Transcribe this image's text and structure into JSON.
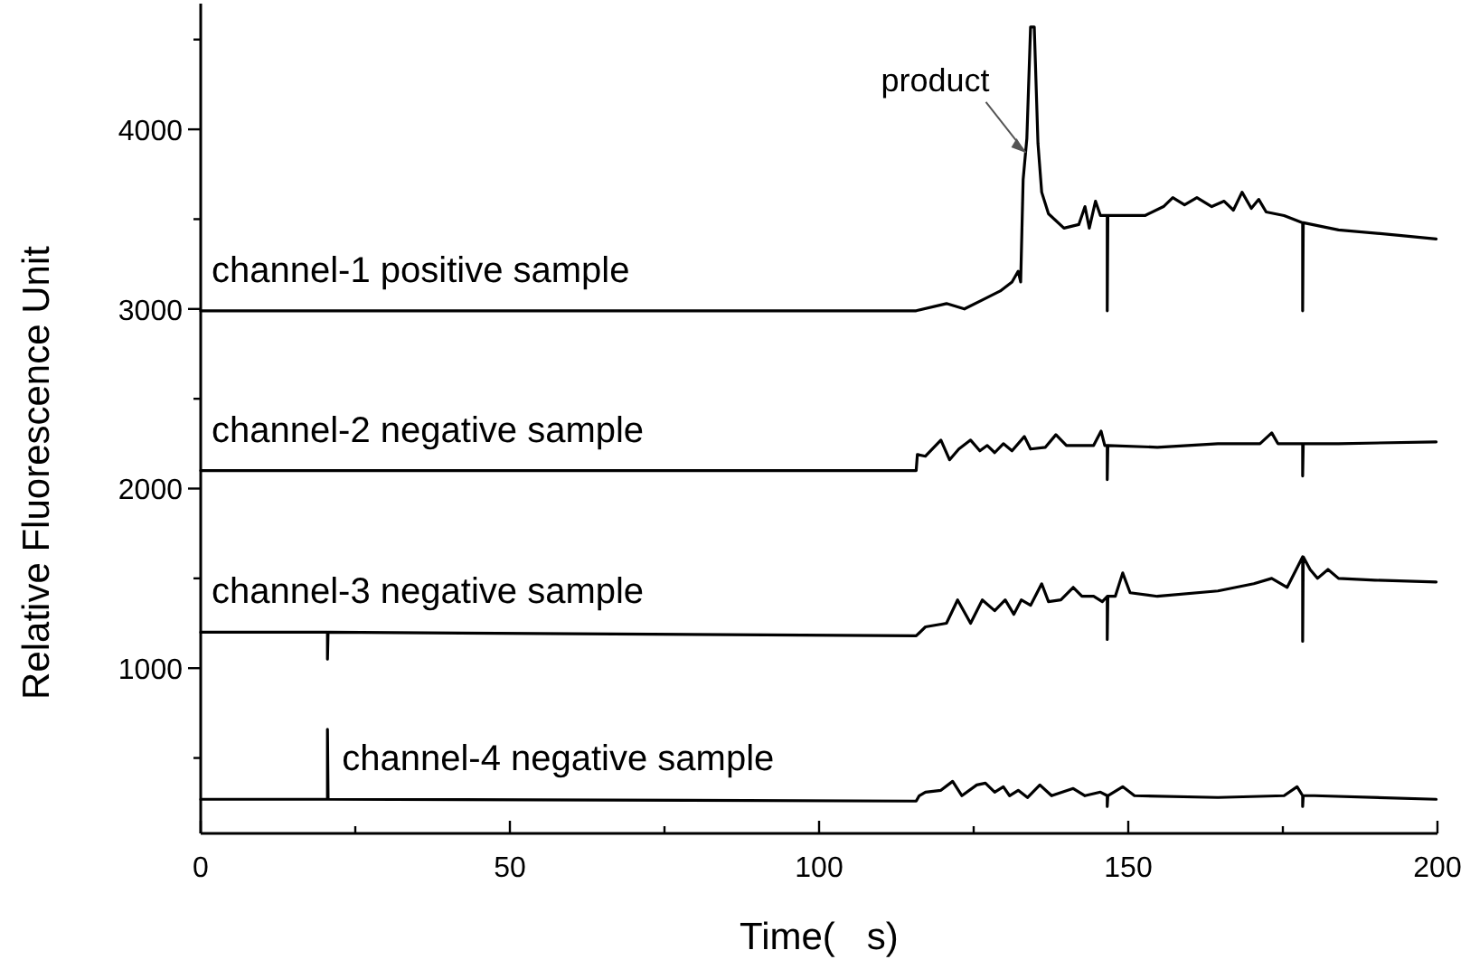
{
  "chart_data": {
    "type": "line",
    "xlabel": "Time(   s)",
    "ylabel": "Relative Fluorescence Unit",
    "xlim": [
      0,
      200
    ],
    "ylim": [
      80,
      4700
    ],
    "xticks": [
      0,
      {
        "value": 25,
        "label": null
      },
      50,
      {
        "value": 75,
        "label": null
      },
      100,
      {
        "value": 125,
        "label": null
      },
      150,
      {
        "value": 175,
        "label": null
      },
      200
    ],
    "yticks": [
      {
        "value": 500,
        "label": null
      },
      1000,
      {
        "value": 1500,
        "label": null
      },
      2000,
      {
        "value": 2500,
        "label": null
      },
      3000,
      {
        "value": 3500,
        "label": null
      },
      4000,
      {
        "value": 4500,
        "label": null
      }
    ],
    "grid": false,
    "marker": "none",
    "line_style": "solid",
    "annotations": [
      {
        "text": "product",
        "x": 134,
        "y": 3850
      }
    ],
    "series": [
      {
        "name": "channel-1 positive sample",
        "color": "#000000",
        "x": [
          0,
          100,
          115.7,
          120.6,
          123.5,
          126.4,
          129.3,
          131.2,
          132.2,
          132.6,
          133,
          133.6,
          134.2,
          134.8,
          135.4,
          136,
          137.1,
          139.6,
          142,
          143,
          143.7,
          144.7,
          145.5,
          146.6,
          146.6,
          146.7,
          152.7,
          155.7,
          157.2,
          159.1,
          161.1,
          163.5,
          165.5,
          167,
          168.4,
          169.9,
          171.1,
          172.3,
          175.2,
          178.2,
          178.2,
          178.3,
          184,
          193.8,
          199.8
        ],
        "values": [
          2990,
          2990,
          2990,
          3030,
          3000,
          3050,
          3100,
          3150,
          3210,
          3150,
          3720,
          3950,
          4570,
          4570,
          3920,
          3650,
          3530,
          3450,
          3470,
          3570,
          3450,
          3600,
          3520,
          3520,
          2990,
          3520,
          3520,
          3570,
          3620,
          3580,
          3620,
          3570,
          3600,
          3550,
          3650,
          3560,
          3610,
          3540,
          3520,
          3480,
          2990,
          3480,
          3440,
          3410,
          3390
        ]
      },
      {
        "name": "channel-2 negative sample",
        "color": "#000000",
        "x": [
          0,
          115.7,
          115.9,
          117.2,
          119.7,
          121.1,
          122.6,
          124.5,
          126,
          127.2,
          128.4,
          129.8,
          131.2,
          133.2,
          134.2,
          136.6,
          138.3,
          140,
          144.4,
          145.6,
          146.2,
          146.6,
          146.6,
          146.7,
          154.7,
          164.5,
          171.3,
          173.2,
          174.2,
          178.2,
          178.2,
          178.3,
          184,
          199.8
        ],
        "values": [
          2100,
          2100,
          2190,
          2180,
          2270,
          2160,
          2220,
          2270,
          2210,
          2240,
          2200,
          2250,
          2210,
          2290,
          2220,
          2230,
          2300,
          2240,
          2240,
          2320,
          2240,
          2240,
          2050,
          2240,
          2230,
          2250,
          2250,
          2310,
          2250,
          2250,
          2070,
          2250,
          2250,
          2260
        ]
      },
      {
        "name": "channel-3 negative sample",
        "color": "#000000",
        "x": [
          0,
          20.5,
          20.5,
          20.6,
          115.7,
          117.2,
          120.6,
          122.4,
          124.5,
          126.4,
          128.4,
          130.1,
          131.5,
          132.7,
          134.2,
          136,
          137.1,
          139.1,
          141.1,
          142.5,
          144.4,
          145.8,
          146.6,
          146.6,
          146.7,
          147.9,
          149.1,
          150.3,
          154.7,
          164.5,
          170.3,
          173.2,
          175.7,
          178.2,
          178.2,
          178.3,
          179.4,
          180.6,
          182.3,
          184,
          189.9,
          199.8
        ],
        "values": [
          1200,
          1200,
          1050,
          1200,
          1180,
          1230,
          1250,
          1380,
          1250,
          1380,
          1320,
          1380,
          1300,
          1380,
          1350,
          1470,
          1370,
          1380,
          1450,
          1400,
          1400,
          1370,
          1400,
          1160,
          1400,
          1400,
          1530,
          1420,
          1400,
          1430,
          1470,
          1500,
          1450,
          1620,
          1150,
          1620,
          1550,
          1500,
          1550,
          1500,
          1490,
          1480
        ]
      },
      {
        "name": "channel-4 negative sample",
        "color": "#000000",
        "x": [
          0,
          20.5,
          20.5,
          20.6,
          115.7,
          116.2,
          117.2,
          119.7,
          121.6,
          123.1,
          125.5,
          126.9,
          128.4,
          129.8,
          130.8,
          132.2,
          133.7,
          135.7,
          137.6,
          141.1,
          143,
          145.5,
          146.6,
          146.6,
          146.7,
          149.1,
          151,
          164.5,
          175.2,
          177.3,
          178.2,
          178.2,
          178.3,
          180.1,
          199.8
        ],
        "values": [
          270,
          270,
          660,
          270,
          260,
          290,
          310,
          320,
          370,
          290,
          350,
          360,
          310,
          340,
          290,
          320,
          280,
          350,
          290,
          330,
          290,
          310,
          290,
          230,
          290,
          340,
          290,
          280,
          290,
          340,
          290,
          230,
          290,
          290,
          270
        ]
      }
    ]
  }
}
